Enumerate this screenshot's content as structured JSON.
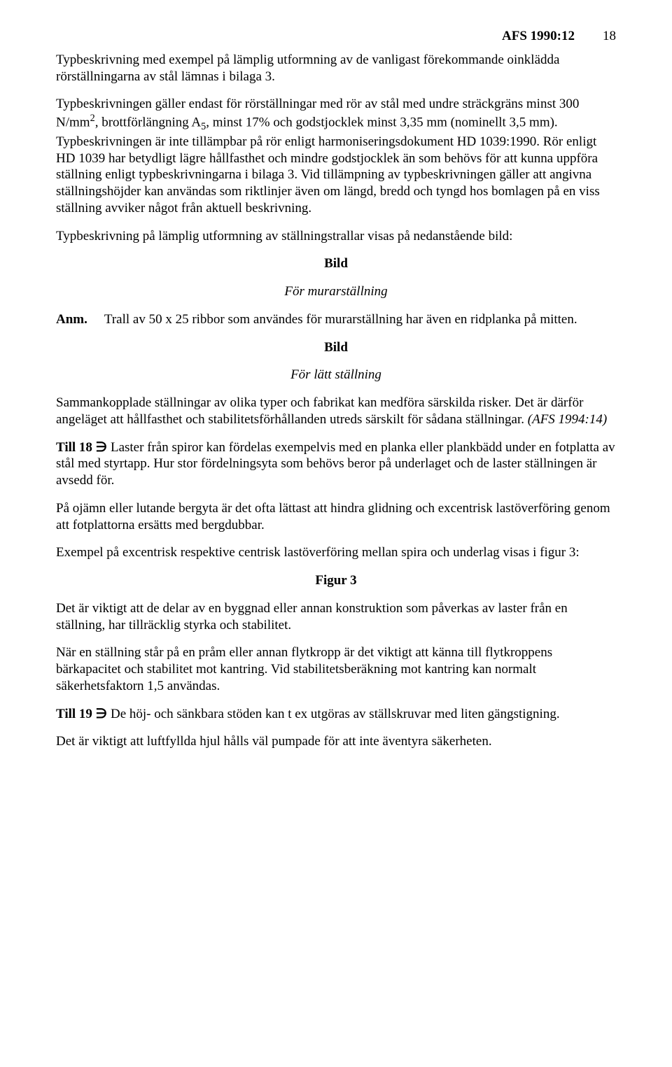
{
  "header": {
    "title": "AFS 1990:12",
    "pageNumber": "18"
  },
  "para1": "Typbeskrivning med exempel på lämplig utformning av de vanligast förekommande oinklädda rörställningarna av stål lämnas i bilaga 3.",
  "para2_a": "Typbeskrivningen gäller endast för rörställningar med rör av stål med undre sträckgräns minst 300 N/mm",
  "para2_sup": "2",
  "para2_b": ", brottförlängning A",
  "para2_sub": "5",
  "para2_c": ", minst 17% och godstjocklek minst 3,35 mm (nominellt 3,5 mm). Typbeskrivningen är inte tillämpbar på rör enligt harmoniseringsdokument HD 1039:1990. Rör enligt HD 1039 har betydligt lägre hållfasthet och mindre godstjocklek än som behövs för att kunna uppföra ställning enligt typbeskrivningarna i bilaga 3. Vid tillämpning av typbeskrivningen gäller att angivna ställningshöjder kan användas som riktlinjer även om längd, bredd och tyngd hos bomlagen på en viss ställning avviker något från aktuell beskrivning.",
  "para3": "Typbeskrivning på lämplig utformning av ställningstrallar visas på nedanstående bild:",
  "bild1": "Bild",
  "caption1": "För murarställning",
  "anmLabel": "Anm.",
  "anmText": "Trall av 50 x 25 ribbor som användes för murarställning har även en ridplanka på mitten.",
  "bild2": "Bild",
  "caption2": "För lätt ställning",
  "para4_a": "Sammankopplade ställningar av olika typer och fabrikat kan medföra särskilda risker. Det är därför angeläget att hållfasthet och stabilitetsförhållanden utreds särskilt för sådana ställningar. ",
  "para4_b": "(AFS 1994:14)",
  "para5_label": "Till 18 ∋",
  "para5": " Laster från spiror kan fördelas exempelvis med en planka eller plankbädd under en fotplatta av stål med styrtapp. Hur stor fördelningsyta som behövs beror på underlaget och de laster ställningen är avsedd för.",
  "para6": "På ojämn eller lutande bergyta är det ofta lättast att hindra glidning och excentrisk lastöverföring genom att fotplattorna ersätts med bergdubbar.",
  "para7": "Exempel på excentrisk respektive centrisk lastöverföring mellan spira och underlag visas i figur 3:",
  "figur3": "Figur 3",
  "para8": "Det är viktigt att de delar av en byggnad eller annan konstruktion som påverkas av laster från en ställning, har tillräcklig styrka och stabilitet.",
  "para9": "När en ställning står på en pråm eller annan flytkropp är det viktigt att känna till flytkroppens bärkapacitet och stabilitet mot kantring. Vid stabilitetsberäkning mot kantring kan normalt säkerhetsfaktorn 1,5 användas.",
  "para10_label": "Till 19 ∋",
  "para10": " De höj- och sänkbara stöden kan t ex utgöras av ställskruvar med liten gängstigning.",
  "para11": "Det är viktigt att luftfyllda hjul hålls väl pumpade för att inte äventyra säkerheten."
}
